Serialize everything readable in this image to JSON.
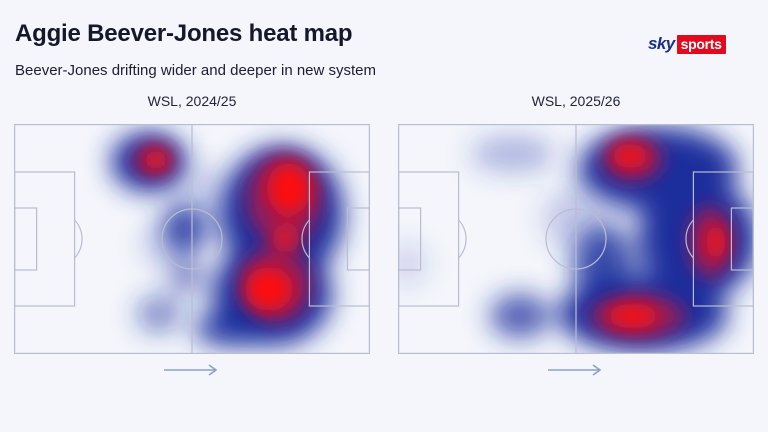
{
  "header": {
    "title": "Aggie Beever-Jones heat map",
    "subtitle": "Beever-Jones drifting wider and deeper in new system"
  },
  "logo": {
    "sky": "sky",
    "sports": "sports",
    "brand_blue": "#1a2f8a",
    "brand_red": "#e10a1e"
  },
  "panels": [
    {
      "label": "WSL, 2024/25",
      "direction_icon": "right-arrow-icon"
    },
    {
      "label": "WSL, 2025/26",
      "direction_icon": "right-arrow-icon"
    }
  ],
  "colors": {
    "pitch_lines": "#b9bdd2",
    "heat_low": "#1a2d9c",
    "heat_high": "#ff1010",
    "arrow": "#8aa0c4"
  }
}
